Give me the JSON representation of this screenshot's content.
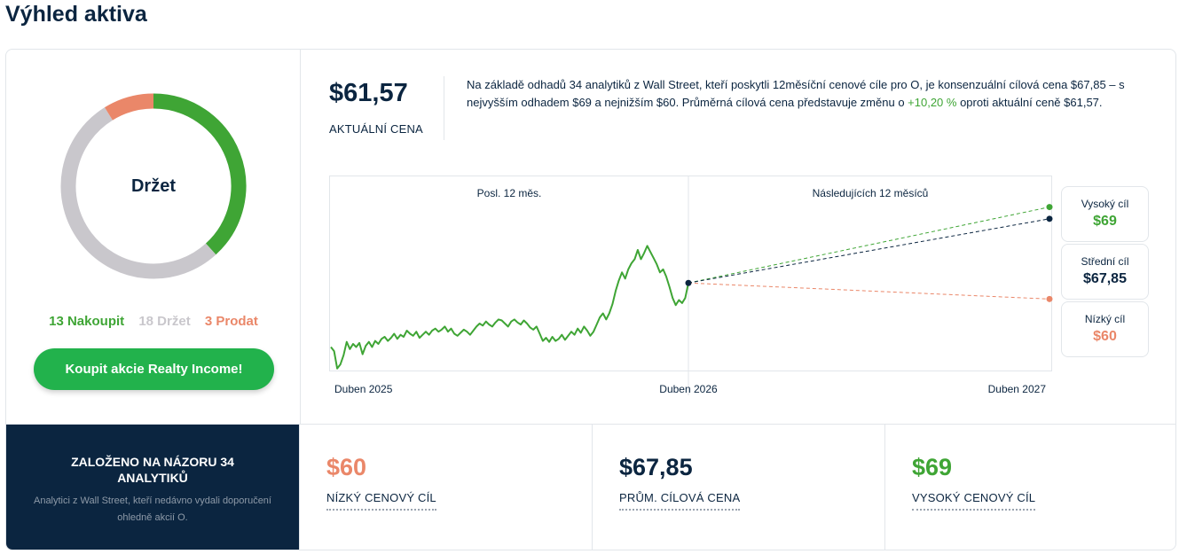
{
  "page": {
    "title": "Výhled aktiva"
  },
  "rating": {
    "label": "Držet",
    "buy": {
      "count": 13,
      "text": "13 Nakoupit",
      "color": "#3fa535"
    },
    "hold": {
      "count": 18,
      "text": "18 Držet",
      "color": "#c9c7cc"
    },
    "sell": {
      "count": 3,
      "text": "3 Prodat",
      "color": "#ea8769"
    },
    "button_label": "Koupit akcie Realty Income!"
  },
  "price": {
    "value": "$61,57",
    "label": "AKTUÁLNÍ CENA",
    "desc_before": "Na základě odhadů 34 analytiků z Wall Street, kteří poskytli 12měsíční cenové cíle pro O, je konsenzuální cílová cena $67,85 – s nejvyšším odhadem $69 a nejnižším $60. Průměrná cílová cena představuje změnu o ",
    "desc_pct": "+10,20 %",
    "desc_after": " oproti aktuální ceně $61,57."
  },
  "chart_data": {
    "type": "line",
    "section_labels": [
      "Posl. 12 měs.",
      "Následujících 12 měsíců"
    ],
    "x_tick_labels": [
      "Duben 2025",
      "Duben 2026",
      "Duben 2027"
    ],
    "ylim": [
      53,
      72
    ],
    "history": {
      "color": "#3fa535",
      "values": [
        55.3,
        54.9,
        53.2,
        53.6,
        54.5,
        55.8,
        55.1,
        55.6,
        55.3,
        55.7,
        54.6,
        55.4,
        55.8,
        55.3,
        55.9,
        55.6,
        56.1,
        56.3,
        55.9,
        56.2,
        56.6,
        56.1,
        56.5,
        56.3,
        56.9,
        56.6,
        56.4,
        56.8,
        56.2,
        56.5,
        56.8,
        56.5,
        56.9,
        57.1,
        56.8,
        57.0,
        57.3,
        56.8,
        57.1,
        56.6,
        56.4,
        56.7,
        57.0,
        56.8,
        56.5,
        56.9,
        57.3,
        57.6,
        57.4,
        57.8,
        57.5,
        57.3,
        57.7,
        58.0,
        57.9,
        57.6,
        57.3,
        57.8,
        58.0,
        57.7,
        57.5,
        57.9,
        57.6,
        57.2,
        57.0,
        57.3,
        56.6,
        55.9,
        56.2,
        55.8,
        56.3,
        55.9,
        56.1,
        56.5,
        56.0,
        56.4,
        56.8,
        56.5,
        57.1,
        56.7,
        57.3,
        56.9,
        56.4,
        56.8,
        57.5,
        58.2,
        58.6,
        58.0,
        58.6,
        59.5,
        60.8,
        61.8,
        62.6,
        62.0,
        62.9,
        63.5,
        63.9,
        64.8,
        63.9,
        64.5,
        65.2,
        64.6,
        64.0,
        63.4,
        62.6,
        62.9,
        62.2,
        61.2,
        60.1,
        59.4,
        59.9,
        59.6,
        60.1
      ]
    },
    "current": 61.57,
    "targets": [
      {
        "name": "Vysoký cíl",
        "value": 69,
        "value_text": "$69",
        "color": "#3fa535"
      },
      {
        "name": "Střední cíl",
        "value": 67.85,
        "value_text": "$67,85",
        "color": "#0b2540"
      },
      {
        "name": "Nízký cíl",
        "value": 60,
        "value_text": "$60",
        "color": "#ea8769"
      }
    ]
  },
  "summary": {
    "title": "ZALOŽENO NA NÁZORU 34 ANALYTIKŮ",
    "subtitle": "Analytici z Wall Street, kteří nedávno vydali doporučení ohledně akcií O.",
    "low": {
      "value": "$60",
      "label": "NÍZKÝ CENOVÝ CÍL",
      "color": "#ea8769"
    },
    "avg": {
      "value": "$67,85",
      "label": "PRŮM. CÍLOVÁ CENA",
      "color": "#0b2540"
    },
    "high": {
      "value": "$69",
      "label": "VYSOKÝ CENOVÝ CÍL",
      "color": "#3fa535"
    }
  }
}
